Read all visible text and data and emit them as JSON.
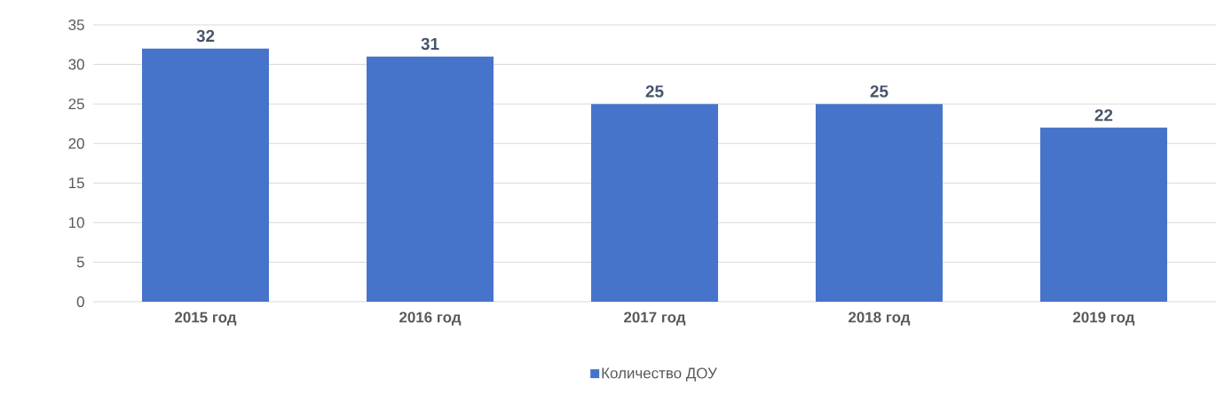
{
  "chart_data": {
    "type": "bar",
    "categories": [
      "2015 год",
      "2016 год",
      "2017 год",
      "2018 год",
      "2019 год"
    ],
    "series": [
      {
        "name": "Количество ДОУ",
        "color": "#4674cb",
        "values": [
          32,
          31,
          25,
          25,
          22
        ]
      }
    ],
    "ylim": [
      0,
      35
    ],
    "yticks": [
      0,
      5,
      10,
      15,
      20,
      25,
      30,
      35
    ],
    "grid": "y",
    "legend": "bottom",
    "data_labels": true
  }
}
